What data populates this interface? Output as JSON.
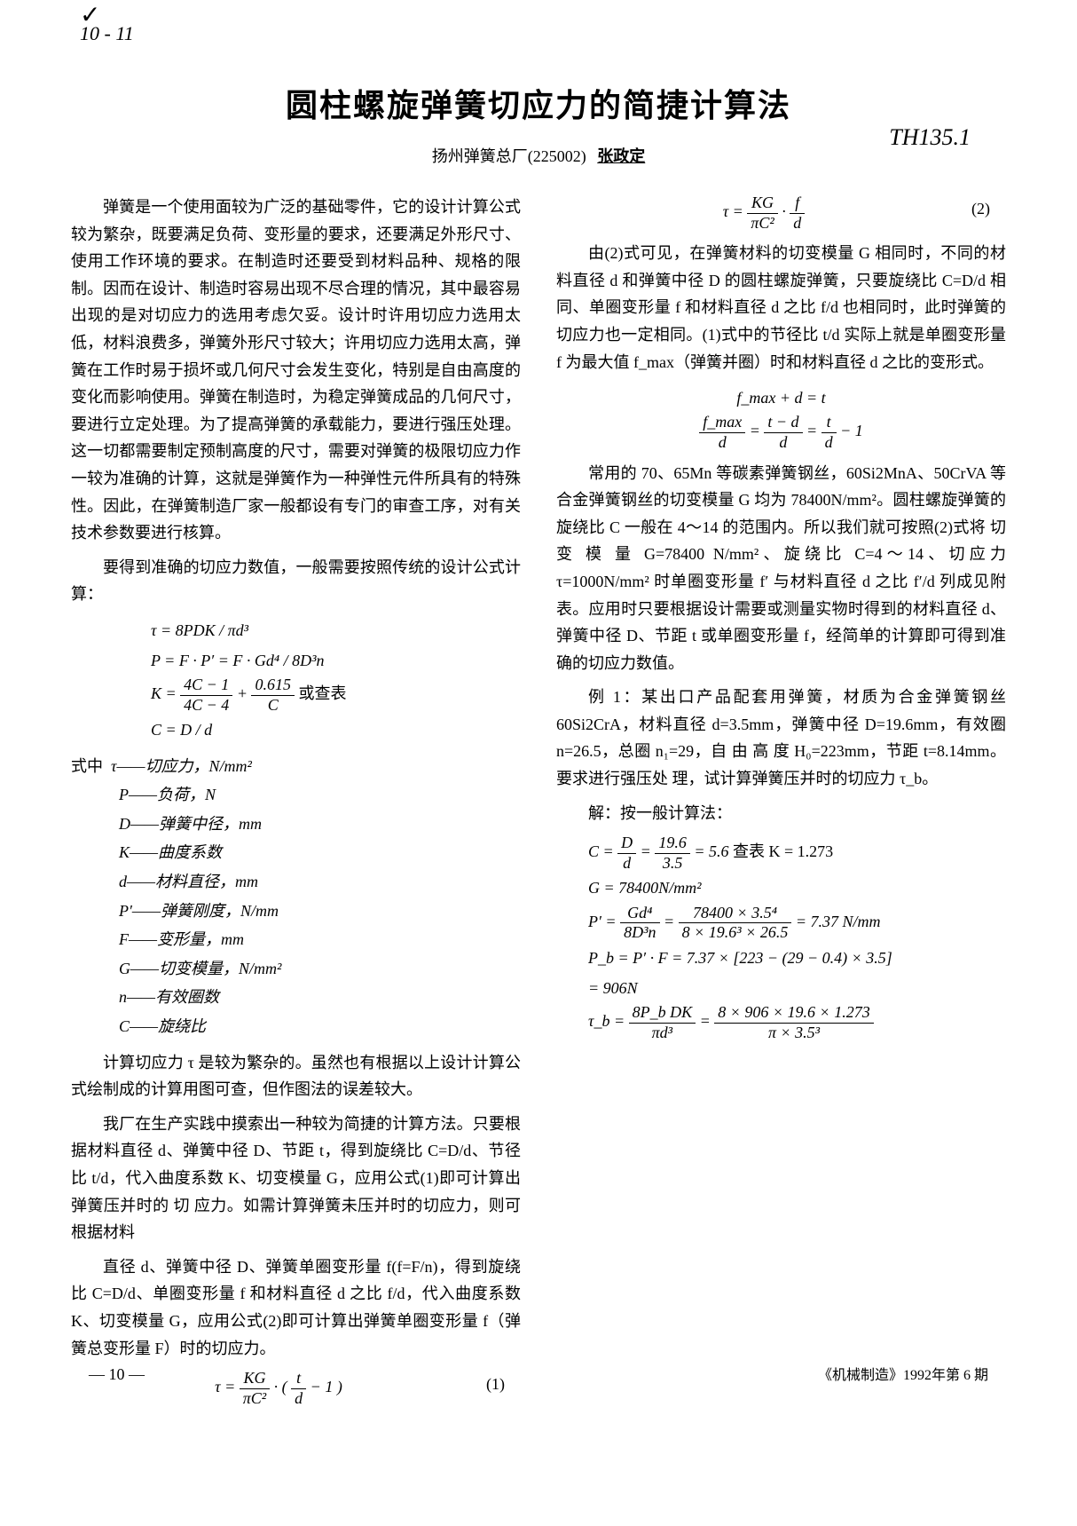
{
  "marginalia": {
    "check": "✓",
    "top_left": "10 - 11",
    "top_scribble": "",
    "classification_code": "TH135.1"
  },
  "header": {
    "title": "圆柱螺旋弹簧切应力的简捷计算法",
    "affiliation": "扬州弹簧总厂(225002)",
    "author": "张政定"
  },
  "body": {
    "p1": "弹簧是一个使用面较为广泛的基础零件，它的设计计算公式较为繁杂，既要满足负荷、变形量的要求，还要满足外形尺寸、使用工作环境的要求。在制造时还要受到材料品种、规格的限制。因而在设计、制造时容易出现不尽合理的情况，其中最容易出现的是对切应力的选用考虑欠妥。设计时许用切应力选用太低，材料浪费多，弹簧外形尺寸较大；许用切应力选用太高，弹簧在工作时易于损坏或几何尺寸会发生变化，特别是自由高度的变化而影响使用。弹簧在制造时，为稳定弹簧成品的几何尺寸，要进行立定处理。为了提高弹簧的承载能力，要进行强压处理。这一切都需要制定预制高度的尺寸，需要对弹簧的极限切应力作一较为准确的计算，这就是弹簧作为一种弹性元件所具有的特殊性。因此，在弹簧制造厂家一般都设有专门的审查工序，对有关技术参数要进行核算。",
    "p2": "要得到准确的切应力数值，一般需要按照传统的设计公式计算：",
    "formulas1": {
      "f1": "τ = 8PDK / πd³",
      "f2": "P = F · P′ = F · Gd⁴ / 8D³n",
      "f3_left": "K = ",
      "f3_frac_num": "4C − 1",
      "f3_frac_den": "4C − 4",
      "f3_plus": " + ",
      "f3_frac2_num": "0.615",
      "f3_frac2_den": "C",
      "f3_tail": "   或查表",
      "f4": "C = D / d"
    },
    "defs_label": "式中",
    "defs": {
      "tau": "τ——切应力，N/mm²",
      "P": "P——负荷，N",
      "D": "D——弹簧中径，mm",
      "K": "K——曲度系数",
      "d": "d——材料直径，mm",
      "Pp": "P′——弹簧刚度，N/mm",
      "F": "F——变形量，mm",
      "G": "G——切变模量，N/mm²",
      "n": "n——有效圈数",
      "C": "C——旋绕比"
    },
    "p3": "计算切应力 τ 是较为繁杂的。虽然也有根据以上设计计算公式绘制成的计算用图可查，但作图法的误差较大。",
    "p4": "我厂在生产实践中摸索出一种较为简捷的计算方法。只要根据材料直径 d、弹簧中径 D、节距 t，得到旋绕比 C=D/d、节径比 t/d，代入曲度系数 K、切变模量 G，应用公式(1)即可计算出弹簧压并时的 切 应力。如需计算弹簧未压并时的切应力，则可根据材料",
    "p5": "直径 d、弹簧中径 D、弹簧单圈变形量 f(f=F/n)，得到旋绕比 C=D/d、单圈变形量 f 和材料直径 d 之比 f/d，代入曲度系数 K、切变模量 G，应用公式(2)即可计算出弹簧单圈变形量 f（弹簧总变形量 F）时的切应力。",
    "eq1_left": "τ = ",
    "eq1_frac_num": "KG",
    "eq1_frac_den": "πC²",
    "eq1_mid": " · ",
    "eq1_paren_num": "t",
    "eq1_paren_den": "d",
    "eq1_tail": " − 1",
    "eq1_num": "(1)",
    "eq2_left": "τ = ",
    "eq2_frac_num": "KG",
    "eq2_frac_den": "πC²",
    "eq2_mid": " · ",
    "eq2_frac2_num": "f",
    "eq2_frac2_den": "d",
    "eq2_num": "(2)",
    "p6": "由(2)式可见，在弹簧材料的切变模量 G 相同时，不同的材料直径 d 和弹簧中径 D 的圆柱螺旋弹簧，只要旋绕比 C=D/d 相同、单圈变形量 f 和材料直径 d 之比 f/d 也相同时，此时弹簧的切应力也一定相同。(1)式中的节径比 t/d 实际上就是单圈变形量 f 为最大值 f_max（弹簧并圈）时和材料直径 d 之比的变形式。",
    "deriv1": "f_max + d = t",
    "deriv2_num1": "f_max",
    "deriv2_den1": "d",
    "deriv2_eq": " = ",
    "deriv2_num2": "t − d",
    "deriv2_den2": "d",
    "deriv2_eq2": " = ",
    "deriv2_num3": "t",
    "deriv2_den3": "d",
    "deriv2_tail": " − 1",
    "p7": "常用的 70、65Mn 等碳素弹簧钢丝，60Si2MnA、50CrVA 等合金弹簧钢丝的切变模量 G 均为 78400N/mm²。圆柱螺旋弹簧的旋绕比 C 一般在 4～14 的范围内。所以我们就可按照(2)式将 切 变 模 量 G=78400 N/mm²、旋绕比 C=4～14、切应力 τ=1000N/mm² 时单圈变形量 f′ 与材料直径 d 之比 f′/d 列成见附表。应用时只要根据设计需要或测量实物时得到的材料直径 d、弹簧中径 D、节距 t 或单圈变形量 f，经简单的计算即可得到准确的切应力数值。",
    "p8": "例 1：某出口产品配套用弹簧，材质为合金弹簧钢丝 60Si2CrA，材料直径 d=3.5mm，弹簧中径 D=19.6mm，有效圈 n=26.5，总圈 n₁=29，自 由 高 度 H₀=223mm，节距 t=8.14mm。要求进行强压处 理，试计算弹簧压并时的切应力 τ_b。",
    "p9": "解：按一般计算法：",
    "solve": {
      "s1_left": "C = ",
      "s1_num": "D",
      "s1_den": "d",
      "s1_eq": " = ",
      "s1_num2": "19.6",
      "s1_den2": "3.5",
      "s1_res": " = 5.6",
      "s1_lookup": "      查表 K = 1.273",
      "s2": "G = 78400N/mm²",
      "s3_left": "P′ = ",
      "s3_num": "Gd⁴",
      "s3_den": "8D³n",
      "s3_eq": " = ",
      "s3_num2": "78400 × 3.5⁴",
      "s3_den2": "8 × 19.6³ × 26.5",
      "s3_res": " = 7.37 N/mm",
      "s4": "P_b = P′ · F = 7.37 × [223 − (29 − 0.4) × 3.5]",
      "s4b": "    = 906N",
      "s5_left": "τ_b = ",
      "s5_num": "8P_b DK",
      "s5_den": "πd³",
      "s5_eq": " = ",
      "s5_num2": "8 × 906 × 19.6 × 1.273",
      "s5_den2": "π × 3.5³"
    }
  },
  "footer": {
    "page_num": "— 10 —",
    "publication": "《机械制造》1992年第 6 期"
  }
}
